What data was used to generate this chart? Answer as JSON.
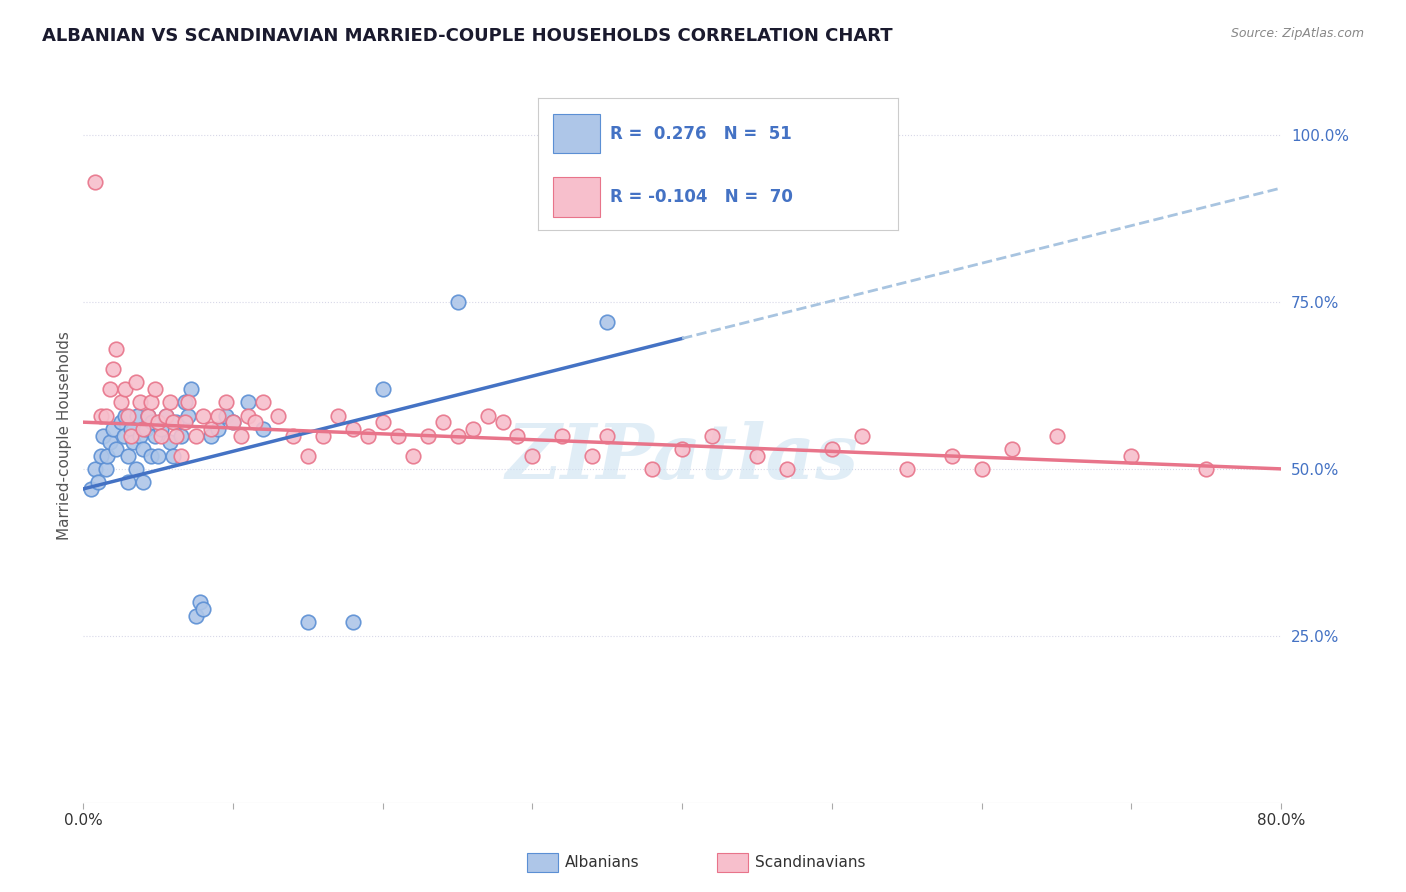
{
  "title": "ALBANIAN VS SCANDINAVIAN MARRIED-COUPLE HOUSEHOLDS CORRELATION CHART",
  "source": "Source: ZipAtlas.com",
  "ylabel": "Married-couple Households",
  "ytick_labels": [
    "25.0%",
    "50.0%",
    "75.0%",
    "100.0%"
  ],
  "ytick_values": [
    0.25,
    0.5,
    0.75,
    1.0
  ],
  "xlim": [
    0.0,
    0.8
  ],
  "ylim": [
    0.0,
    1.1
  ],
  "albanians_color": "#aec6e8",
  "albanians_edge": "#5b8fd4",
  "scandinavians_color": "#f7bfcc",
  "scandinavians_edge": "#e8748a",
  "trend_albanian_color": "#4472c4",
  "trend_albanian_dashed_color": "#a8c4e0",
  "trend_scandinavian_color": "#e8748a",
  "R_albanian": 0.276,
  "N_albanian": 51,
  "R_scandinavian": -0.104,
  "N_scandinavian": 70,
  "legend_label_albanian": "Albanians",
  "legend_label_scandinavian": "Scandinavians",
  "watermark": "ZIPatlas",
  "watermark_color": "#c8dff0",
  "grid_color": "#d8d8e8",
  "title_color": "#1a1a2e",
  "source_color": "#888888",
  "tick_color": "#4472c4",
  "label_color": "#555555",
  "albanian_x": [
    0.005,
    0.008,
    0.01,
    0.012,
    0.013,
    0.015,
    0.016,
    0.018,
    0.02,
    0.022,
    0.025,
    0.027,
    0.028,
    0.03,
    0.03,
    0.032,
    0.033,
    0.035,
    0.036,
    0.038,
    0.04,
    0.04,
    0.042,
    0.043,
    0.045,
    0.046,
    0.048,
    0.05,
    0.052,
    0.055,
    0.058,
    0.06,
    0.062,
    0.065,
    0.068,
    0.07,
    0.072,
    0.075,
    0.078,
    0.08,
    0.085,
    0.09,
    0.095,
    0.1,
    0.11,
    0.12,
    0.15,
    0.18,
    0.2,
    0.25,
    0.35
  ],
  "albanian_y": [
    0.47,
    0.5,
    0.48,
    0.52,
    0.55,
    0.5,
    0.52,
    0.54,
    0.56,
    0.53,
    0.57,
    0.55,
    0.58,
    0.48,
    0.52,
    0.56,
    0.54,
    0.5,
    0.58,
    0.55,
    0.48,
    0.53,
    0.56,
    0.58,
    0.52,
    0.57,
    0.55,
    0.52,
    0.56,
    0.58,
    0.54,
    0.52,
    0.57,
    0.55,
    0.6,
    0.58,
    0.62,
    0.28,
    0.3,
    0.29,
    0.55,
    0.56,
    0.58,
    0.57,
    0.6,
    0.56,
    0.27,
    0.27,
    0.62,
    0.75,
    0.72
  ],
  "scandinavian_x": [
    0.008,
    0.012,
    0.015,
    0.018,
    0.02,
    0.022,
    0.025,
    0.028,
    0.03,
    0.032,
    0.035,
    0.038,
    0.04,
    0.043,
    0.045,
    0.048,
    0.05,
    0.052,
    0.055,
    0.058,
    0.06,
    0.062,
    0.065,
    0.068,
    0.07,
    0.075,
    0.08,
    0.085,
    0.09,
    0.095,
    0.1,
    0.105,
    0.11,
    0.115,
    0.12,
    0.13,
    0.14,
    0.15,
    0.16,
    0.17,
    0.18,
    0.19,
    0.2,
    0.21,
    0.22,
    0.23,
    0.24,
    0.25,
    0.26,
    0.27,
    0.28,
    0.29,
    0.3,
    0.32,
    0.34,
    0.35,
    0.38,
    0.4,
    0.42,
    0.45,
    0.47,
    0.5,
    0.52,
    0.55,
    0.58,
    0.6,
    0.62,
    0.65,
    0.7,
    0.75
  ],
  "scandinavian_y": [
    0.93,
    0.58,
    0.58,
    0.62,
    0.65,
    0.68,
    0.6,
    0.62,
    0.58,
    0.55,
    0.63,
    0.6,
    0.56,
    0.58,
    0.6,
    0.62,
    0.57,
    0.55,
    0.58,
    0.6,
    0.57,
    0.55,
    0.52,
    0.57,
    0.6,
    0.55,
    0.58,
    0.56,
    0.58,
    0.6,
    0.57,
    0.55,
    0.58,
    0.57,
    0.6,
    0.58,
    0.55,
    0.52,
    0.55,
    0.58,
    0.56,
    0.55,
    0.57,
    0.55,
    0.52,
    0.55,
    0.57,
    0.55,
    0.56,
    0.58,
    0.57,
    0.55,
    0.52,
    0.55,
    0.52,
    0.55,
    0.5,
    0.53,
    0.55,
    0.52,
    0.5,
    0.53,
    0.55,
    0.5,
    0.52,
    0.5,
    0.53,
    0.55,
    0.52,
    0.5
  ],
  "albanian_trend_x0": 0.0,
  "albanian_trend_y0": 0.47,
  "albanian_trend_x1": 0.55,
  "albanian_trend_y1": 0.78,
  "albanian_trend_solid_end": 0.4,
  "albanian_trend_dashed_end": 0.8,
  "scandinavian_trend_x0": 0.0,
  "scandinavian_trend_y0": 0.57,
  "scandinavian_trend_x1": 0.8,
  "scandinavian_trend_y1": 0.5
}
